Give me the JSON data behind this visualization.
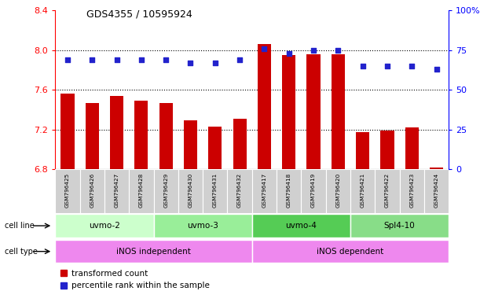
{
  "title": "GDS4355 / 10595924",
  "samples": [
    "GSM796425",
    "GSM796426",
    "GSM796427",
    "GSM796428",
    "GSM796429",
    "GSM796430",
    "GSM796431",
    "GSM796432",
    "GSM796417",
    "GSM796418",
    "GSM796419",
    "GSM796420",
    "GSM796421",
    "GSM796422",
    "GSM796423",
    "GSM796424"
  ],
  "transformed_count": [
    7.56,
    7.47,
    7.54,
    7.49,
    7.47,
    7.29,
    7.23,
    7.31,
    8.06,
    7.95,
    7.96,
    7.96,
    7.17,
    7.19,
    7.22,
    6.82
  ],
  "percentile_rank": [
    69,
    69,
    69,
    69,
    69,
    67,
    67,
    69,
    76,
    73,
    75,
    75,
    65,
    65,
    65,
    63
  ],
  "cell_lines": [
    {
      "label": "uvmo-2",
      "start": 0,
      "end": 4,
      "color": "#ccffcc"
    },
    {
      "label": "uvmo-3",
      "start": 4,
      "end": 8,
      "color": "#99ee99"
    },
    {
      "label": "uvmo-4",
      "start": 8,
      "end": 12,
      "color": "#55cc55"
    },
    {
      "label": "Spl4-10",
      "start": 12,
      "end": 16,
      "color": "#88dd88"
    }
  ],
  "cell_types": [
    {
      "label": "iNOS independent",
      "start": 0,
      "end": 8,
      "color": "#ee88ee"
    },
    {
      "label": "iNOS dependent",
      "start": 8,
      "end": 16,
      "color": "#ee88ee"
    }
  ],
  "bar_color": "#cc0000",
  "dot_color": "#2222cc",
  "ylim_left": [
    6.8,
    8.4
  ],
  "ylim_right": [
    0,
    100
  ],
  "yticks_left": [
    6.8,
    7.2,
    7.6,
    8.0,
    8.4
  ],
  "yticks_right": [
    0,
    25,
    50,
    75,
    100
  ],
  "ytick_labels_right": [
    "0",
    "25",
    "50",
    "75",
    "100%"
  ],
  "grid_lines": [
    7.2,
    7.6,
    8.0
  ],
  "bar_width": 0.55,
  "base_value": 6.8,
  "label_color": "cell line",
  "type_label": "cell type"
}
